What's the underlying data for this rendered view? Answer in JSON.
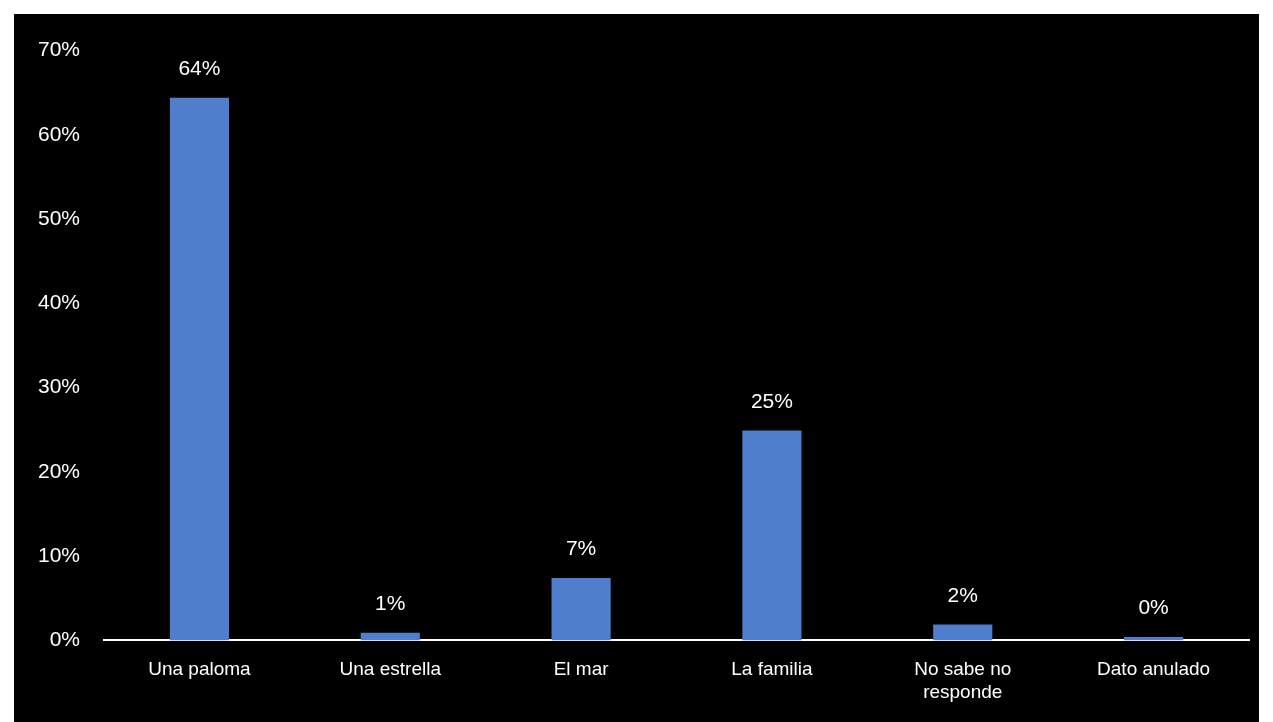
{
  "chart_data": {
    "type": "bar",
    "categories": [
      "Una paloma",
      "Una estrella",
      "El mar",
      "La familia",
      "No sabe no responde",
      "Dato anulado"
    ],
    "values": [
      64.4,
      0.9,
      7.4,
      24.9,
      1.9,
      0.4
    ],
    "value_labels": [
      "64%",
      "1%",
      "7%",
      "25%",
      "2%",
      "0%"
    ],
    "color": "#4f7fcc",
    "ylim": [
      0,
      70
    ],
    "yticks": [
      {
        "value": 0,
        "label": "0%"
      },
      {
        "value": 10,
        "label": "10%"
      },
      {
        "value": 20,
        "label": "20%"
      },
      {
        "value": 30,
        "label": "30%"
      },
      {
        "value": 40,
        "label": "40%"
      },
      {
        "value": 50,
        "label": "50%"
      },
      {
        "value": 60,
        "label": "60%"
      },
      {
        "value": 70,
        "label": "70%"
      }
    ],
    "grid": false,
    "legend": false
  }
}
